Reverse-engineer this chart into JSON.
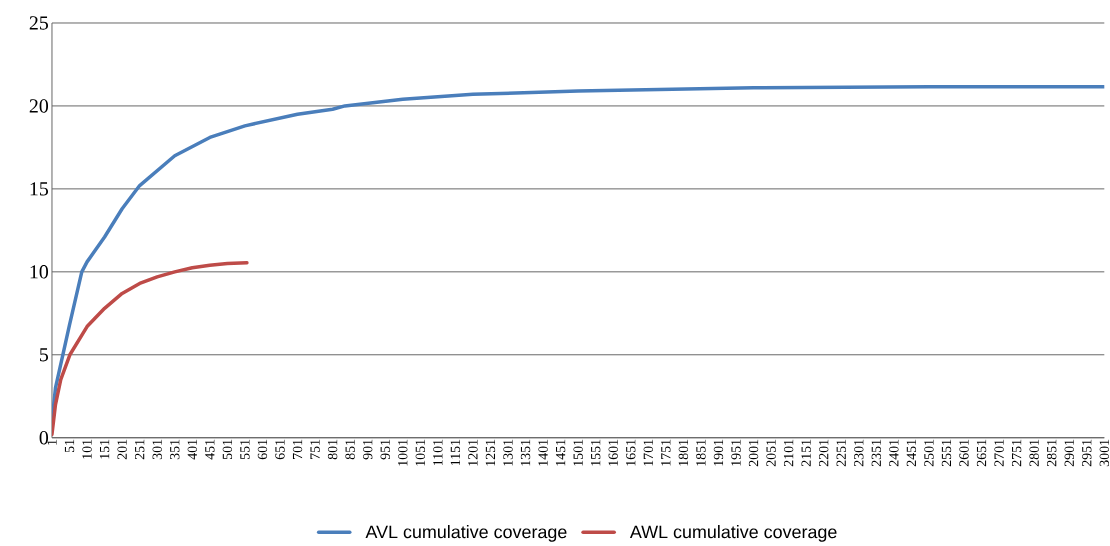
{
  "chart_data": {
    "type": "line",
    "xlim": [
      1,
      3001
    ],
    "ylim": [
      0,
      25
    ],
    "xticks": [
      1,
      51,
      101,
      151,
      201,
      251,
      301,
      351,
      401,
      451,
      501,
      551,
      601,
      651,
      701,
      751,
      801,
      851,
      901,
      951,
      1001,
      1051,
      1101,
      1151,
      1201,
      1251,
      1301,
      1351,
      1401,
      1451,
      1501,
      1551,
      1601,
      1651,
      1701,
      1751,
      1801,
      1851,
      1901,
      1951,
      2001,
      2051,
      2101,
      2151,
      2201,
      2251,
      2301,
      2351,
      2401,
      2451,
      2501,
      2551,
      2601,
      2651,
      2701,
      2751,
      2801,
      2851,
      2901,
      2951,
      3001
    ],
    "yticks": [
      0,
      5,
      10,
      15,
      20,
      25
    ],
    "grid": "y",
    "legend": "bottom",
    "marker": "none",
    "line_style": "solid",
    "series": [
      {
        "name": "AVL cumulative coverage",
        "color": "#4a7ebb",
        "x": [
          1,
          11,
          32,
          51,
          86,
          101,
          151,
          201,
          251,
          351,
          451,
          551,
          701,
          801,
          836,
          1001,
          1201,
          1501,
          2001,
          2501,
          3001
        ],
        "values": [
          1,
          3,
          5,
          6.8,
          10,
          10.6,
          12.1,
          13.8,
          15.2,
          17,
          18.1,
          18.8,
          19.5,
          19.8,
          20,
          20.4,
          20.7,
          20.9,
          21.1,
          21.15,
          21.15
        ]
      },
      {
        "name": "AWL cumulative coverage",
        "color": "#be4b48",
        "x": [
          1,
          11,
          26,
          52,
          101,
          151,
          201,
          251,
          301,
          351,
          401,
          451,
          501,
          557
        ],
        "values": [
          0.2,
          2,
          3.5,
          5,
          6.7,
          7.8,
          8.7,
          9.3,
          9.7,
          10,
          10.25,
          10.4,
          10.5,
          10.55
        ]
      }
    ]
  }
}
